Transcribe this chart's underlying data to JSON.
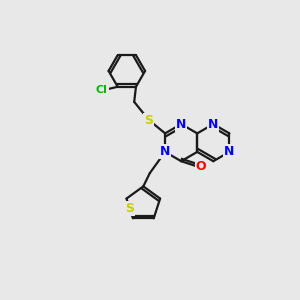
{
  "background_color": "#e8e8e8",
  "bond_color": "#1a1a1a",
  "N_color": "#0000ff",
  "O_color": "#ff0000",
  "S_color": "#cccc00",
  "Cl_color": "#00bb00",
  "figsize": [
    3.0,
    3.0
  ],
  "dpi": 100,
  "xlim": [
    0,
    10
  ],
  "ylim": [
    0,
    10
  ]
}
